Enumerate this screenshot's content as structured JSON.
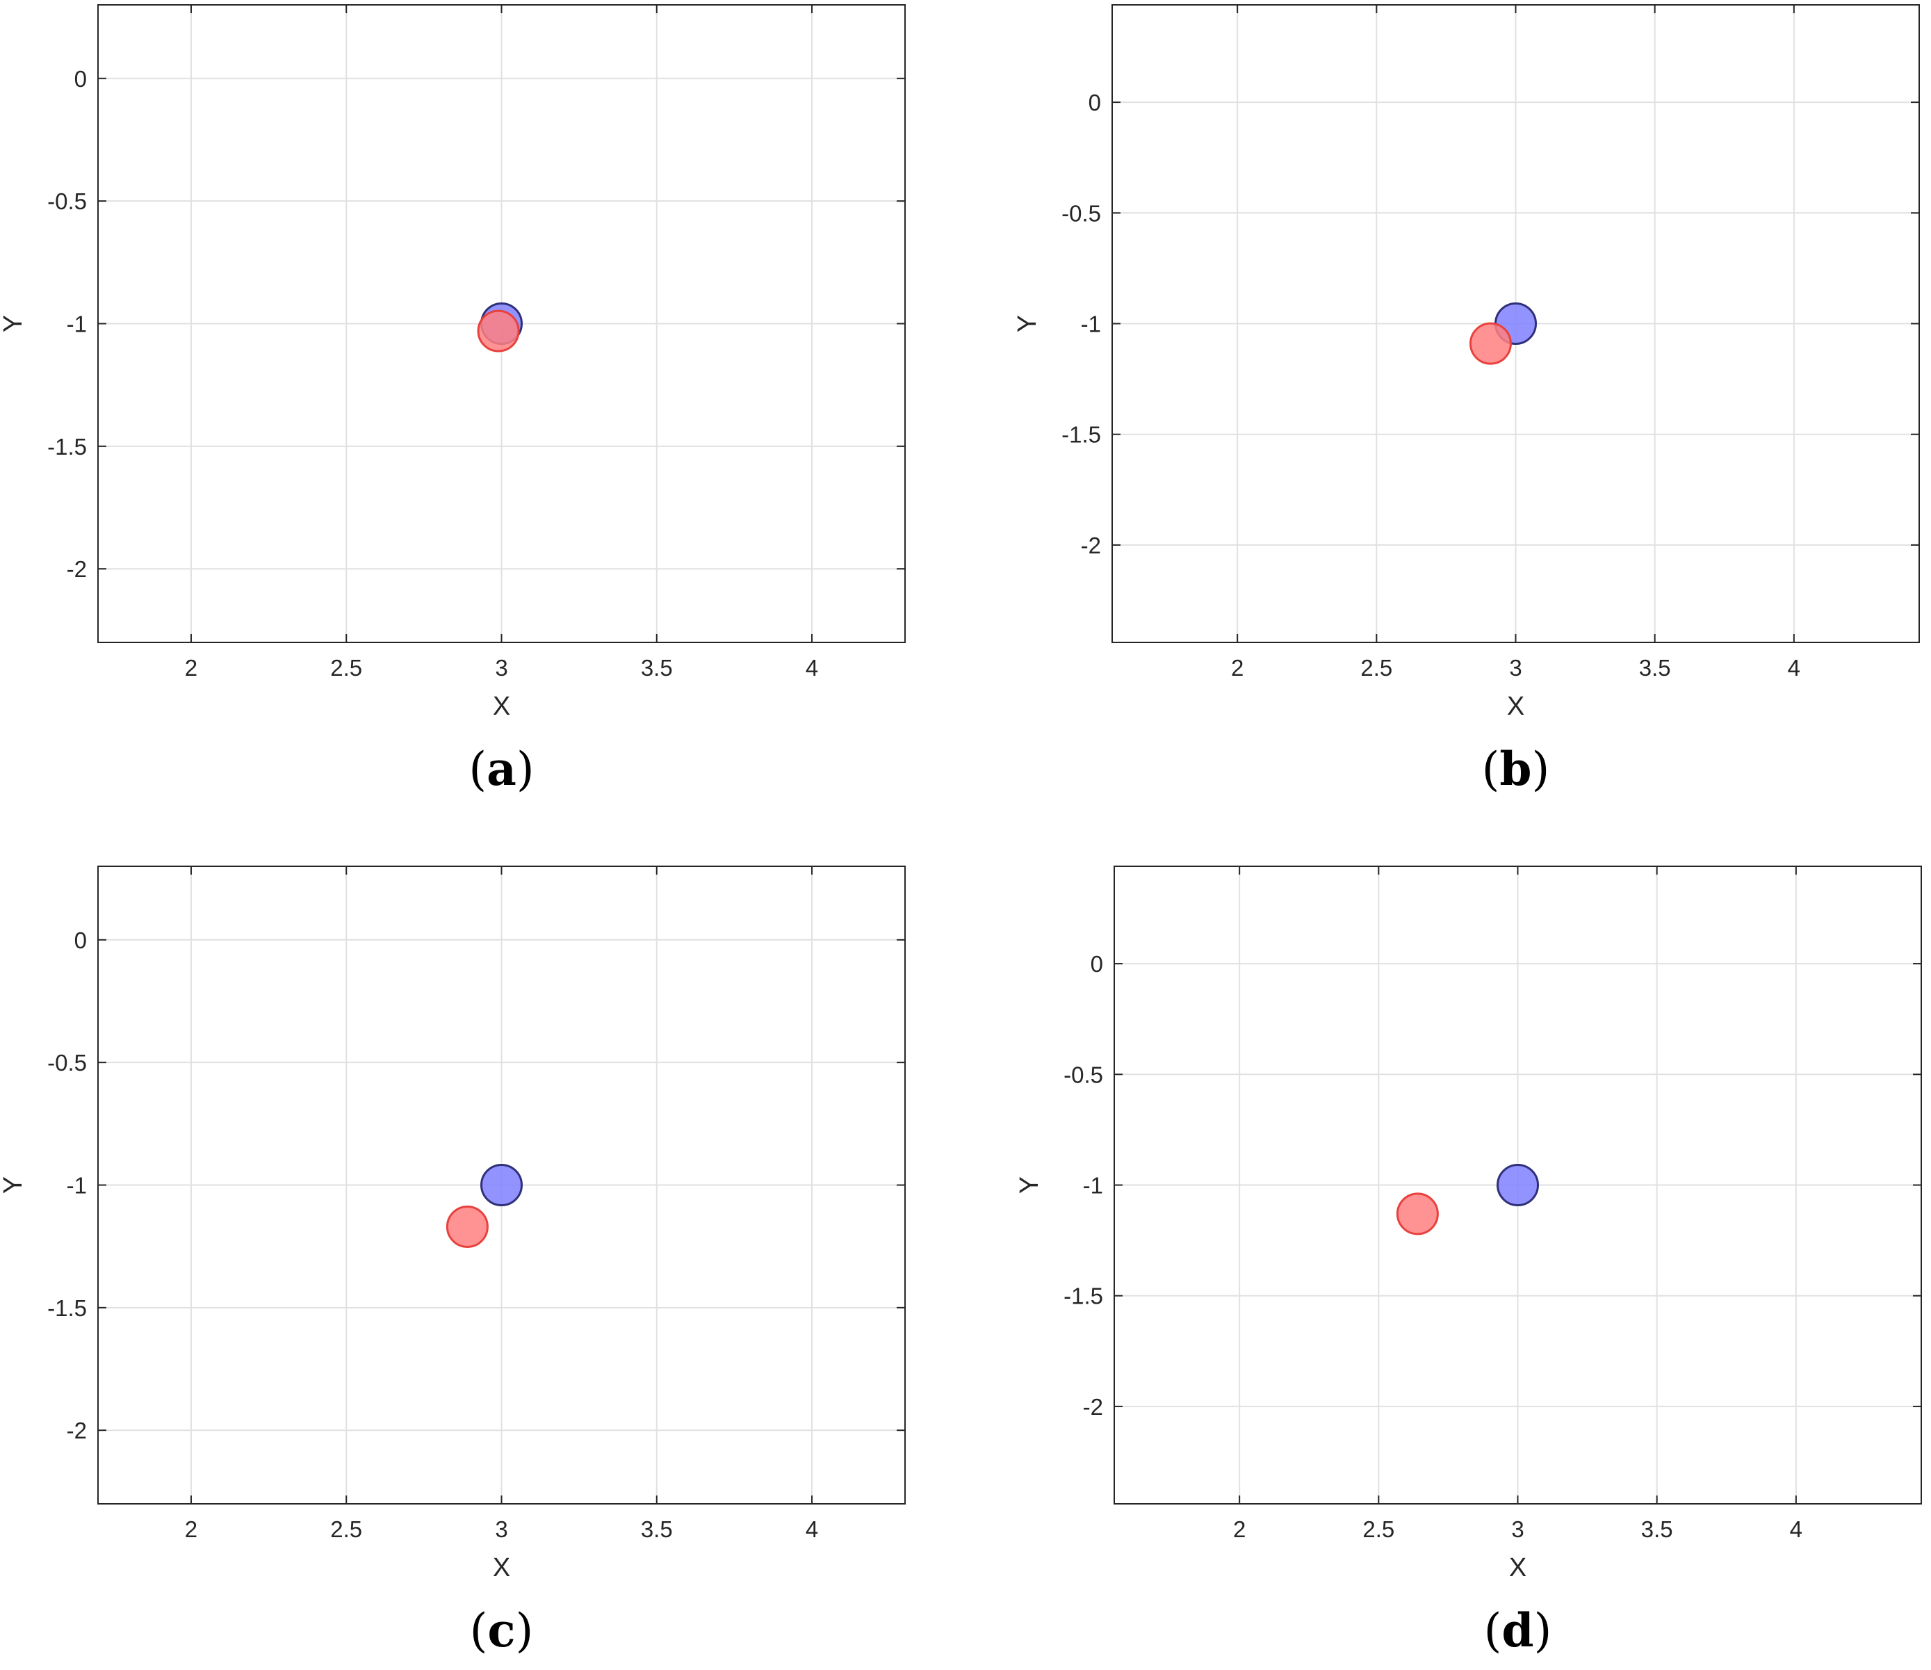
{
  "chart_data": [
    {
      "type": "scatter",
      "panel_label": "a",
      "xlabel": "X",
      "ylabel": "Y",
      "xlim": [
        1.7,
        4.3
      ],
      "ylim": [
        -2.3,
        0.3
      ],
      "xticks": [
        2,
        2.5,
        3,
        3.5,
        4
      ],
      "xtick_labels": [
        "2",
        "2.5",
        "3",
        "3.5",
        "4"
      ],
      "yticks": [
        0,
        -0.5,
        -1,
        -1.5,
        -2
      ],
      "ytick_labels": [
        "0",
        "-0.5",
        "-1",
        "-1.5",
        "-2"
      ],
      "grid": true,
      "series": [
        {
          "color": "#8080ff",
          "edge": "#30307a",
          "points": [
            {
              "x": 3.0,
              "y": -1.0
            }
          ]
        },
        {
          "color": "#ff8080",
          "edge": "#e8413e",
          "points": [
            {
              "x": 2.99,
              "y": -1.03
            }
          ]
        }
      ]
    },
    {
      "type": "scatter",
      "panel_label": "b",
      "xlabel": "X",
      "ylabel": "Y",
      "xlim": [
        1.55,
        4.45
      ],
      "ylim": [
        -2.44,
        0.44
      ],
      "xticks": [
        2,
        2.5,
        3,
        3.5,
        4
      ],
      "xtick_labels": [
        "2",
        "2.5",
        "3",
        "3.5",
        "4"
      ],
      "yticks": [
        0,
        -0.5,
        -1,
        -1.5,
        -2
      ],
      "ytick_labels": [
        "0",
        "-0.5",
        "-1",
        "-1.5",
        "-2"
      ],
      "grid": true,
      "series": [
        {
          "color": "#8080ff",
          "edge": "#30307a",
          "points": [
            {
              "x": 3.0,
              "y": -1.0
            }
          ]
        },
        {
          "color": "#ff8080",
          "edge": "#e8413e",
          "points": [
            {
              "x": 2.91,
              "y": -1.09
            }
          ]
        }
      ]
    },
    {
      "type": "scatter",
      "panel_label": "c",
      "xlabel": "X",
      "ylabel": "Y",
      "xlim": [
        1.7,
        4.3
      ],
      "ylim": [
        -2.3,
        0.3
      ],
      "xticks": [
        2,
        2.5,
        3,
        3.5,
        4
      ],
      "xtick_labels": [
        "2",
        "2.5",
        "3",
        "3.5",
        "4"
      ],
      "yticks": [
        0,
        -0.5,
        -1,
        -1.5,
        -2
      ],
      "ytick_labels": [
        "0",
        "-0.5",
        "-1",
        "-1.5",
        "-2"
      ],
      "grid": true,
      "series": [
        {
          "color": "#8080ff",
          "edge": "#30307a",
          "points": [
            {
              "x": 3.0,
              "y": -1.0
            }
          ]
        },
        {
          "color": "#ff8080",
          "edge": "#e8413e",
          "points": [
            {
              "x": 2.89,
              "y": -1.17
            }
          ]
        }
      ]
    },
    {
      "type": "scatter",
      "panel_label": "d",
      "xlabel": "X",
      "ylabel": "Y",
      "xlim": [
        1.55,
        4.45
      ],
      "ylim": [
        -2.44,
        0.44
      ],
      "xticks": [
        2,
        2.5,
        3,
        3.5,
        4
      ],
      "xtick_labels": [
        "2",
        "2.5",
        "3",
        "3.5",
        "4"
      ],
      "yticks": [
        0,
        -0.5,
        -1,
        -1.5,
        -2
      ],
      "ytick_labels": [
        "0",
        "-0.5",
        "-1",
        "-1.5",
        "-2"
      ],
      "grid": true,
      "series": [
        {
          "color": "#8080ff",
          "edge": "#30307a",
          "points": [
            {
              "x": 3.0,
              "y": -1.0
            }
          ]
        },
        {
          "color": "#ff8080",
          "edge": "#e8413e",
          "points": [
            {
              "x": 2.64,
              "y": -1.13
            }
          ]
        }
      ]
    }
  ]
}
